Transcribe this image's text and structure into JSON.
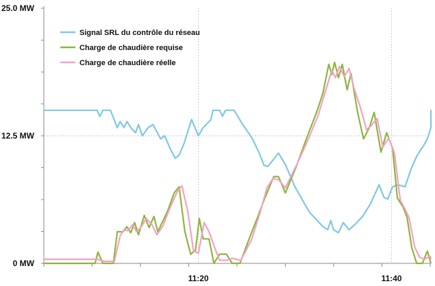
{
  "chart_data": {
    "type": "line",
    "title": "",
    "xlabel": "",
    "ylabel": "",
    "ylim": [
      0,
      25
    ],
    "y_unit": "MW",
    "y_ticks": [
      {
        "value": 0,
        "label": "0 MW"
      },
      {
        "value": 12.5,
        "label": "12.5 MW"
      },
      {
        "value": 25,
        "label": "25.0 MW"
      }
    ],
    "x_range_minutes": [
      0,
      41
    ],
    "x_ticks": [
      {
        "minute": 16,
        "label": "11:20"
      },
      {
        "minute": 36,
        "label": "11:40"
      }
    ],
    "legend_position": "top-left",
    "grid": "dotted vertical lines at labeled times, dotted horizontal line at 12.5 MW",
    "series": [
      {
        "name": "Signal SRL du contrôle du réseau",
        "color": "#7ec8e3",
        "points": [
          [
            0,
            15
          ],
          [
            5.5,
            15
          ],
          [
            5.8,
            14.4
          ],
          [
            6.1,
            15
          ],
          [
            6.9,
            15
          ],
          [
            7.6,
            13.3
          ],
          [
            7.9,
            13.9
          ],
          [
            8.3,
            13.3
          ],
          [
            8.6,
            13.9
          ],
          [
            9,
            13.3
          ],
          [
            9.5,
            12.8
          ],
          [
            9.8,
            13.6
          ],
          [
            10.2,
            12.5
          ],
          [
            10.8,
            13.3
          ],
          [
            11.3,
            13.6
          ],
          [
            12.1,
            12.2
          ],
          [
            12.5,
            12.5
          ],
          [
            13.2,
            11
          ],
          [
            13.6,
            10.3
          ],
          [
            14,
            10.6
          ],
          [
            14.5,
            11.7
          ],
          [
            15.3,
            14.1
          ],
          [
            16,
            12.5
          ],
          [
            16.5,
            13.3
          ],
          [
            17.3,
            14.1
          ],
          [
            17.5,
            15
          ],
          [
            18.2,
            15
          ],
          [
            18.5,
            14.4
          ],
          [
            18.8,
            15
          ],
          [
            19.7,
            15
          ],
          [
            20.4,
            13.9
          ],
          [
            21.6,
            12.2
          ],
          [
            22.3,
            10.8
          ],
          [
            22.8,
            9.6
          ],
          [
            23.2,
            9.5
          ],
          [
            24.3,
            10.8
          ],
          [
            25,
            9.7
          ],
          [
            26,
            7.5
          ],
          [
            27.5,
            5
          ],
          [
            28.9,
            3.6
          ],
          [
            29.4,
            3.3
          ],
          [
            29.7,
            4.2
          ],
          [
            30,
            3.3
          ],
          [
            30.5,
            3
          ],
          [
            31,
            4
          ],
          [
            31.6,
            3.3
          ],
          [
            32.2,
            3.8
          ],
          [
            33,
            4.6
          ],
          [
            33.8,
            5.8
          ],
          [
            34.7,
            7.7
          ],
          [
            35.2,
            6.5
          ],
          [
            35.6,
            6.3
          ],
          [
            36.1,
            7.5
          ],
          [
            36.7,
            7.7
          ],
          [
            37.4,
            7.5
          ],
          [
            38,
            9.2
          ],
          [
            38.6,
            10.5
          ],
          [
            39,
            11.1
          ],
          [
            39.3,
            11.5
          ],
          [
            39.7,
            12.2
          ],
          [
            40.3,
            13.3
          ],
          [
            41,
            15
          ],
          [
            41.5,
            15
          ],
          [
            41.8,
            14.4
          ],
          [
            42.1,
            15
          ],
          [
            44.5,
            15
          ]
        ]
      },
      {
        "name": "Charge de chaudière requise",
        "color": "#8db53c",
        "points": [
          [
            0,
            0
          ],
          [
            5.3,
            0
          ],
          [
            5.6,
            1.1
          ],
          [
            6.1,
            0
          ],
          [
            7.2,
            0
          ],
          [
            7.6,
            3.1
          ],
          [
            8.2,
            3.1
          ],
          [
            8.6,
            3.6
          ],
          [
            9,
            3
          ],
          [
            9.4,
            4
          ],
          [
            9.8,
            2.8
          ],
          [
            10.4,
            4.7
          ],
          [
            10.9,
            3.5
          ],
          [
            11.4,
            4.6
          ],
          [
            11.8,
            3.1
          ],
          [
            12.8,
            5.1
          ],
          [
            13.5,
            6.9
          ],
          [
            14,
            7.5
          ],
          [
            14.6,
            3.1
          ],
          [
            15.2,
            0.9
          ],
          [
            15.7,
            1.3
          ],
          [
            16.1,
            4.4
          ],
          [
            16.5,
            2.4
          ],
          [
            17.1,
            2.4
          ],
          [
            17.6,
            0
          ],
          [
            18.2,
            0.9
          ],
          [
            18.9,
            0.9
          ],
          [
            19.5,
            0
          ],
          [
            20.3,
            0
          ],
          [
            21.3,
            2.5
          ],
          [
            22.2,
            4.7
          ],
          [
            22.8,
            6.2
          ],
          [
            23.8,
            8.5
          ],
          [
            24.3,
            8.5
          ],
          [
            25,
            6.9
          ],
          [
            26.1,
            9.4
          ],
          [
            27.3,
            12.5
          ],
          [
            28.2,
            14.7
          ],
          [
            28.9,
            16.7
          ],
          [
            29.5,
            19.5
          ],
          [
            29.8,
            18.5
          ],
          [
            30.1,
            19.7
          ],
          [
            30.5,
            18.2
          ],
          [
            30.9,
            19.5
          ],
          [
            31.4,
            17
          ],
          [
            31.8,
            18.6
          ],
          [
            32.5,
            14.7
          ],
          [
            33.1,
            12.2
          ],
          [
            33.7,
            13.3
          ],
          [
            34.2,
            14.8
          ],
          [
            34.9,
            10.9
          ],
          [
            35.5,
            12.8
          ],
          [
            36.1,
            11.3
          ],
          [
            36.6,
            6.4
          ],
          [
            37.2,
            5.5
          ],
          [
            37.6,
            4.5
          ],
          [
            38.1,
            1.5
          ],
          [
            38.6,
            0
          ],
          [
            39.2,
            0
          ],
          [
            39.7,
            1.2
          ],
          [
            40.1,
            0
          ],
          [
            42,
            0
          ],
          [
            44.5,
            0
          ]
        ]
      },
      {
        "name": "Charge de chaudière réelle",
        "color": "#f2a2c2",
        "points": [
          [
            0,
            0.4
          ],
          [
            5.5,
            0.4
          ],
          [
            6.3,
            0.2
          ],
          [
            7.3,
            0.2
          ],
          [
            7.9,
            2.7
          ],
          [
            8.3,
            3.3
          ],
          [
            8.7,
            3.2
          ],
          [
            9.2,
            3.8
          ],
          [
            9.6,
            3.1
          ],
          [
            10.1,
            3.6
          ],
          [
            10.6,
            4.4
          ],
          [
            11.2,
            3.8
          ],
          [
            11.7,
            2.8
          ],
          [
            12.3,
            3.6
          ],
          [
            13,
            5.3
          ],
          [
            13.8,
            7
          ],
          [
            14.3,
            7.6
          ],
          [
            14.9,
            5.1
          ],
          [
            15.5,
            1.2
          ],
          [
            16,
            1
          ],
          [
            16.6,
            4
          ],
          [
            17.1,
            3.1
          ],
          [
            17.7,
            1.5
          ],
          [
            18.2,
            0.3
          ],
          [
            19,
            0.3
          ],
          [
            19.5,
            0.5
          ],
          [
            20.4,
            0.3
          ],
          [
            21.5,
            2.3
          ],
          [
            22.4,
            5
          ],
          [
            23.1,
            7.4
          ],
          [
            23.7,
            8.3
          ],
          [
            24.3,
            8.2
          ],
          [
            25,
            7.4
          ],
          [
            26.2,
            9.7
          ],
          [
            27.4,
            12.2
          ],
          [
            28.4,
            14.5
          ],
          [
            29.2,
            17
          ],
          [
            29.8,
            18.9
          ],
          [
            30.2,
            18.2
          ],
          [
            30.6,
            19.3
          ],
          [
            31.1,
            18.3
          ],
          [
            31.6,
            19.1
          ],
          [
            32.1,
            17.2
          ],
          [
            32.8,
            15.2
          ],
          [
            33.4,
            13.1
          ],
          [
            33.9,
            13.5
          ],
          [
            34.5,
            14.2
          ],
          [
            35.1,
            11.4
          ],
          [
            35.7,
            12.3
          ],
          [
            36.3,
            10.8
          ],
          [
            36.9,
            6.2
          ],
          [
            37.4,
            5.3
          ],
          [
            37.8,
            4.5
          ],
          [
            38.4,
            1.6
          ],
          [
            38.9,
            0.6
          ],
          [
            39.4,
            0.4
          ],
          [
            40,
            0.7
          ],
          [
            40.5,
            0.4
          ],
          [
            44.5,
            0.4
          ]
        ]
      }
    ]
  }
}
